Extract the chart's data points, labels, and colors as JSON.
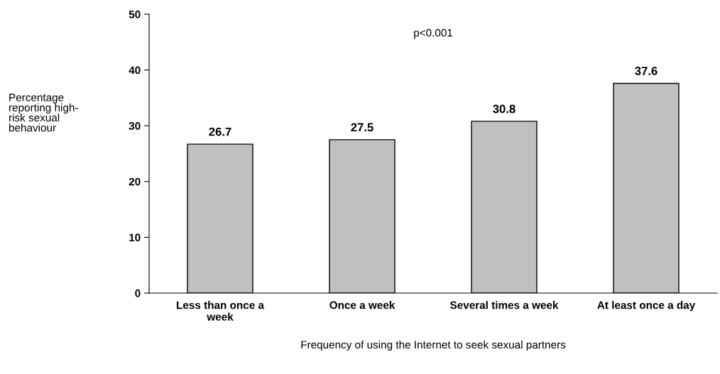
{
  "chart_data": {
    "type": "bar",
    "categories": [
      "Less than once a\nweek",
      "Once a week",
      "Several times a week",
      "At least once a day"
    ],
    "values": [
      26.7,
      27.5,
      30.8,
      37.6
    ],
    "color": "#c0c0c0",
    "ylim": [
      0,
      50
    ],
    "yticks": [
      0,
      10,
      20,
      30,
      40,
      50
    ],
    "xlabel": "Frequency of using the Internet to seek sexual partners",
    "ylabel": "Percentage\nreporting high-\nrisk sexual\nbehaviour",
    "annotations": [
      "p<0.001"
    ],
    "data_labels": true,
    "grid": false,
    "legend": false
  }
}
